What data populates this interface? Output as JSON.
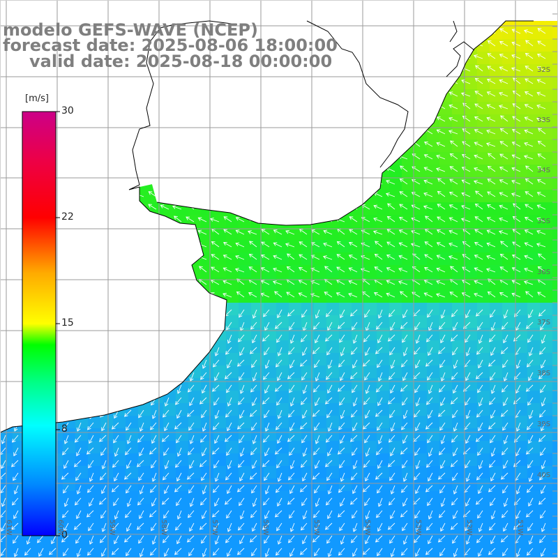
{
  "title": {
    "line1": "modelo GEFS-WAVE (NCEP)",
    "line2": "forecast date: 2025-08-06 18:00:00",
    "line3": "valid date: 2025-08-18 00:00:00"
  },
  "colorbar": {
    "unit": "[m/s]",
    "ticks": [
      "30",
      "22",
      "15",
      "8",
      "0"
    ],
    "colors": [
      "#0000ff",
      "#00aaff",
      "#00ffff",
      "#00ff00",
      "#aaff00",
      "#ffff00",
      "#ffaa00",
      "#ff0000",
      "#ee0044",
      "#cc0088"
    ]
  },
  "lat_labels": [
    "32S",
    "33S",
    "34S",
    "35S",
    "36S",
    "37S",
    "38S",
    "39S",
    "40S"
  ],
  "lon_labels": [
    "61W",
    "60W",
    "59W",
    "58W",
    "57W",
    "56W",
    "55W",
    "54W",
    "53W",
    "52W",
    "51W"
  ],
  "field": {
    "variable": "wind speed",
    "wind_direction_general": "from northeast",
    "color_ocean_north": "#22ee22",
    "color_ocean_south": "#22bbff",
    "color_coast_yellow": "#ffff00"
  }
}
